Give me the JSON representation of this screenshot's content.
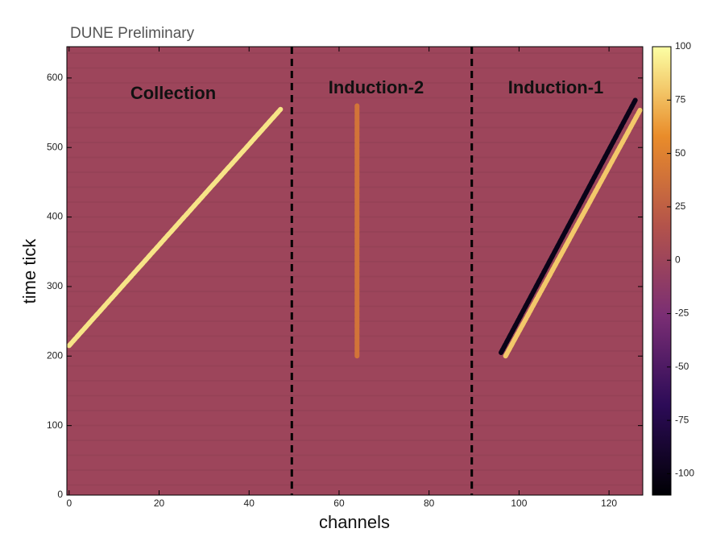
{
  "chart_data": {
    "type": "heatmap",
    "title": "DUNE Preliminary",
    "xlabel": "channels",
    "ylabel": "time tick",
    "xlim": [
      -0.5,
      127.5
    ],
    "xticks": [
      0,
      20,
      40,
      60,
      80,
      100,
      120
    ],
    "ylim": [
      0,
      645
    ],
    "yticks": [
      0,
      100,
      200,
      300,
      400,
      500,
      600
    ],
    "clim": [
      -110,
      100
    ],
    "cticks": [
      100,
      75,
      50,
      25,
      0,
      -25,
      -50,
      -75,
      -100
    ],
    "colormap": [
      "#000004",
      "#2c0b57",
      "#7a2e74",
      "#b3534b",
      "#e98c2a",
      "#fcffa4"
    ],
    "background_adc": 0,
    "regions": [
      "Collection",
      "Induction-2",
      "Induction-1"
    ],
    "dividers": [
      49.5,
      89.5
    ],
    "tracks": [
      {
        "x": [
          0,
          47
        ],
        "y": [
          215,
          555
        ],
        "adc": 90
      },
      {
        "x": [
          64,
          64
        ],
        "y": [
          200,
          560
        ],
        "adc": 40
      },
      {
        "x": [
          96,
          126
        ],
        "y": [
          205,
          570
        ],
        "adc": -100
      },
      {
        "x": [
          97,
          127
        ],
        "y": [
          200,
          555
        ],
        "adc": 80
      }
    ]
  }
}
